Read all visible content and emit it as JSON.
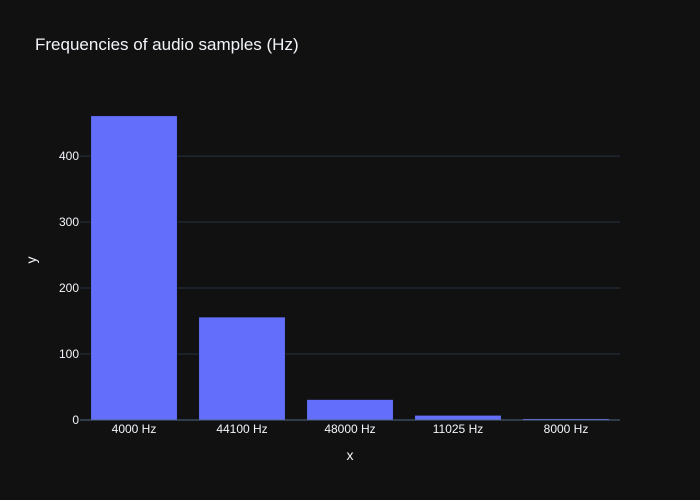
{
  "theme": {
    "background": "#111111",
    "plot_background": "#111111",
    "grid_color": "#283442",
    "text_color": "#f2f5fa",
    "bar_color": "#636efa",
    "zero_line_color": "#506784"
  },
  "chart_data": {
    "type": "bar",
    "title": "Frequencies of audio samples (Hz)",
    "xlabel": "x",
    "ylabel": "y",
    "categories": [
      "4000 Hz",
      "44100 Hz",
      "48000 Hz",
      "11025 Hz",
      "8000 Hz"
    ],
    "values": [
      461,
      156,
      31,
      7,
      2
    ],
    "ylim": [
      0,
      485
    ],
    "yticks": [
      0,
      100,
      200,
      300,
      400
    ],
    "grid": true,
    "legend": "none"
  }
}
